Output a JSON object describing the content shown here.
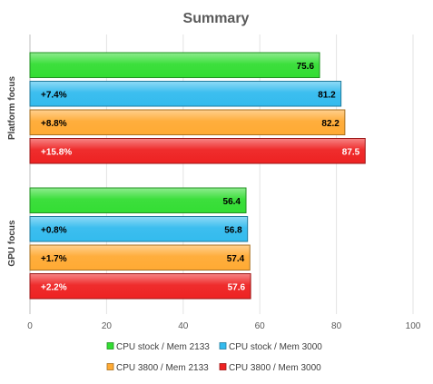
{
  "chart_data": {
    "type": "bar",
    "orientation": "horizontal",
    "title": "Summary",
    "xlabel": "",
    "ylabel": "",
    "xlim": [
      0,
      100
    ],
    "x_ticks": [
      0,
      20,
      40,
      60,
      80,
      100
    ],
    "grid": true,
    "legend_position": "bottom",
    "groups": [
      "Platform focus",
      "GPU focus"
    ],
    "series": [
      {
        "name": "CPU stock / Mem 2133",
        "color": "#33dd33",
        "values": [
          75.6,
          56.4
        ],
        "delta_labels": [
          "",
          ""
        ],
        "value_text_color": "#000000"
      },
      {
        "name": "CPU stock / Mem 3000",
        "color": "#33bbee",
        "values": [
          81.2,
          56.8
        ],
        "delta_labels": [
          "+7.4%",
          "+0.8%"
        ],
        "value_text_color": "#000000"
      },
      {
        "name": "CPU 3800 / Mem 2133",
        "color": "#ffaa33",
        "values": [
          82.2,
          57.4
        ],
        "delta_labels": [
          "+8.8%",
          "+1.7%"
        ],
        "value_text_color": "#000000"
      },
      {
        "name": "CPU 3800 / Mem 3000",
        "color": "#ee2222",
        "values": [
          87.5,
          57.6
        ],
        "delta_labels": [
          "+15.8%",
          "+2.2%"
        ],
        "value_text_color": "#ffffff"
      }
    ]
  }
}
